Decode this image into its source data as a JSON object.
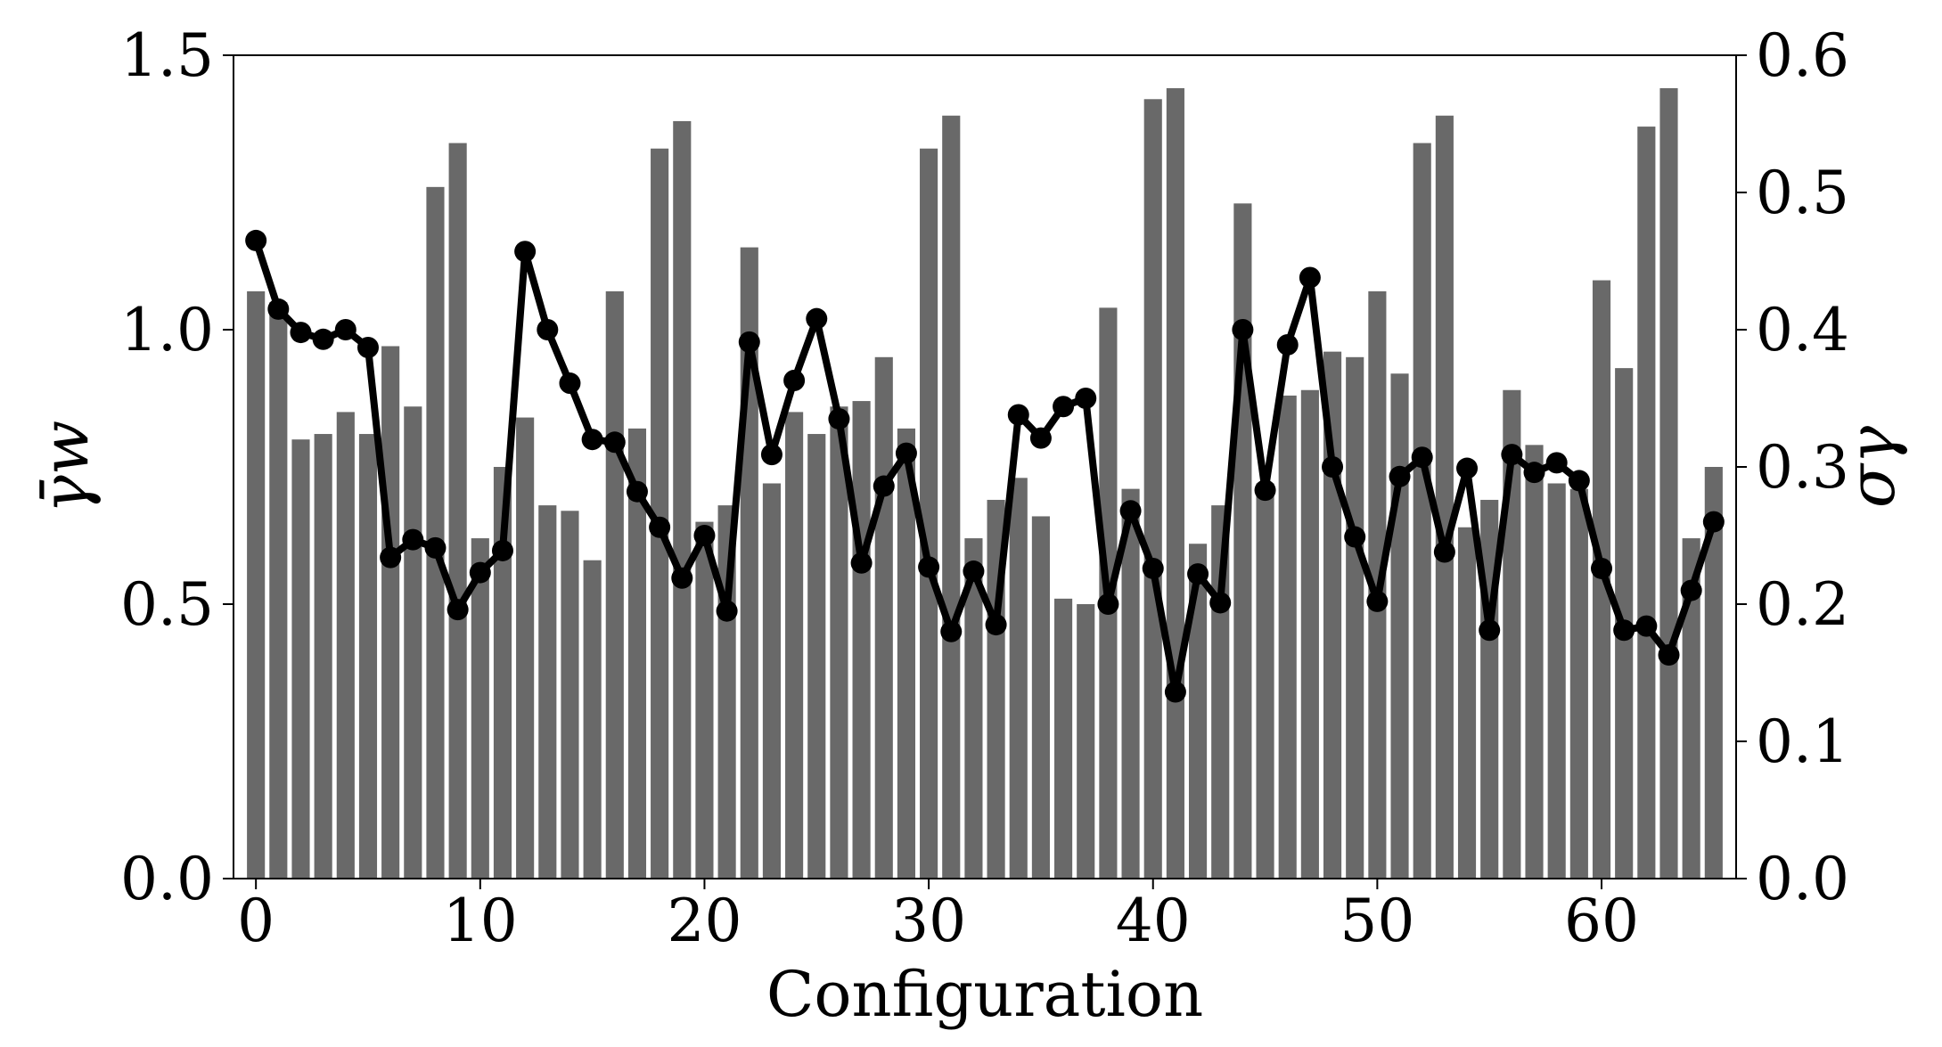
{
  "chart_data": {
    "type": "bar",
    "xlabel": "Configuration",
    "ylabel_left": "γ̄w",
    "ylabel_right": "σγ",
    "xlim": [
      -1,
      66
    ],
    "ylim_left": [
      0,
      1.5
    ],
    "ylim_right": [
      0,
      0.6
    ],
    "x_ticks": [
      "0",
      "10",
      "20",
      "30",
      "40",
      "50",
      "60"
    ],
    "y_left_ticks": [
      "0.0",
      "0.5",
      "1.0",
      "1.5"
    ],
    "y_right_ticks": [
      "0.0",
      "0.1",
      "0.2",
      "0.3",
      "0.4",
      "0.5",
      "0.6"
    ],
    "grid": false,
    "colors": {
      "bars": "#696969",
      "line": "#000000"
    },
    "x": [
      0,
      1,
      2,
      3,
      4,
      5,
      6,
      7,
      8,
      9,
      10,
      11,
      12,
      13,
      14,
      15,
      16,
      17,
      18,
      19,
      20,
      21,
      22,
      23,
      24,
      25,
      26,
      27,
      28,
      29,
      30,
      31,
      32,
      33,
      34,
      35,
      36,
      37,
      38,
      39,
      40,
      41,
      42,
      43,
      44,
      45,
      46,
      47,
      48,
      49,
      50,
      51,
      52,
      53,
      54,
      55,
      56,
      57,
      58,
      59,
      60,
      61,
      62,
      63,
      64,
      65
    ],
    "series": [
      {
        "axis": "left",
        "kind": "bar",
        "values": [
          1.07,
          1.05,
          0.8,
          0.81,
          0.85,
          0.81,
          0.97,
          0.86,
          1.26,
          1.34,
          0.62,
          0.75,
          0.84,
          0.68,
          0.67,
          0.58,
          1.07,
          0.82,
          1.33,
          1.38,
          0.65,
          0.68,
          1.15,
          0.72,
          0.85,
          0.81,
          0.86,
          0.87,
          0.95,
          0.82,
          1.33,
          1.39,
          0.62,
          0.69,
          0.73,
          0.66,
          0.51,
          0.5,
          1.04,
          0.71,
          1.42,
          1.44,
          0.61,
          0.68,
          1.23,
          0.72,
          0.88,
          0.89,
          0.96,
          0.95,
          1.07,
          0.92,
          1.34,
          1.39,
          0.64,
          0.69,
          0.89,
          0.79,
          0.72,
          0.71,
          1.09,
          0.93,
          1.37,
          1.44,
          0.62,
          0.75
        ]
      },
      {
        "axis": "right",
        "kind": "line",
        "values": [
          0.465,
          0.415,
          0.398,
          0.393,
          0.4,
          0.387,
          0.234,
          0.247,
          0.241,
          0.196,
          0.223,
          0.239,
          0.457,
          0.4,
          0.361,
          0.32,
          0.318,
          0.282,
          0.256,
          0.219,
          0.25,
          0.195,
          0.391,
          0.309,
          0.363,
          0.408,
          0.335,
          0.23,
          0.286,
          0.31,
          0.227,
          0.18,
          0.224,
          0.185,
          0.338,
          0.321,
          0.344,
          0.35,
          0.2,
          0.268,
          0.226,
          0.136,
          0.222,
          0.201,
          0.4,
          0.283,
          0.389,
          0.438,
          0.3,
          0.249,
          0.202,
          0.293,
          0.307,
          0.238,
          0.299,
          0.181,
          0.309,
          0.296,
          0.303,
          0.29,
          0.226,
          0.181,
          0.184,
          0.163,
          0.21,
          0.26
        ]
      }
    ]
  }
}
